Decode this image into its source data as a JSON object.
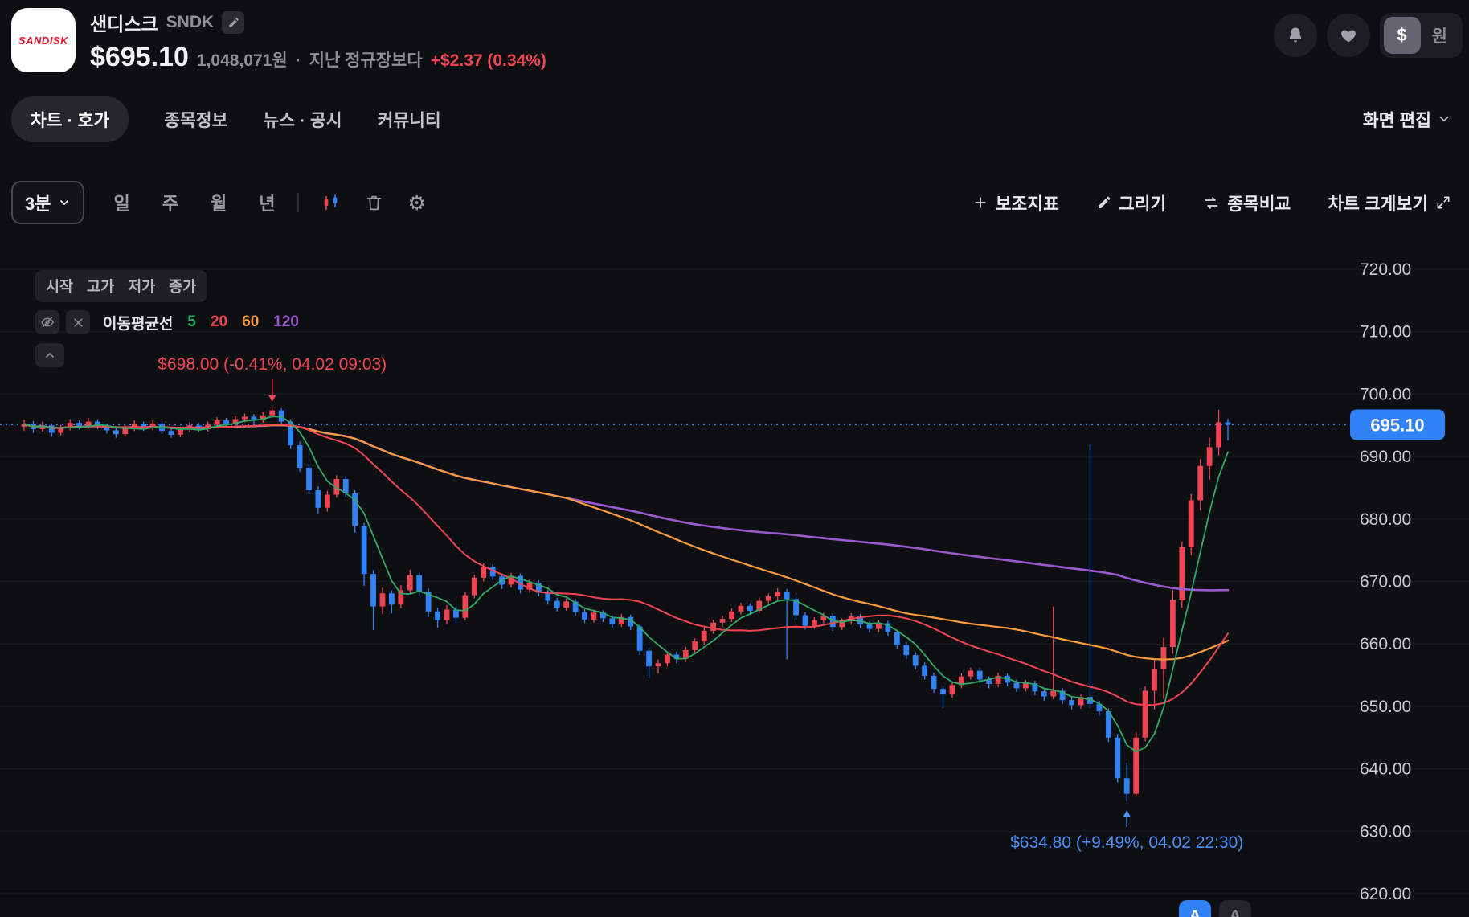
{
  "header": {
    "logo_text": "SANDISK",
    "name": "샌디스크",
    "ticker": "SNDK",
    "price": "$695.10",
    "krw_value": "1,048,071원",
    "dot": "·",
    "compare_label": "지난 정규장보다",
    "change": "+$2.37 (0.34%)",
    "currency_usd": "$",
    "currency_krw": "원"
  },
  "nav": {
    "tabs": [
      {
        "label": "차트 · 호가",
        "active": true
      },
      {
        "label": "종목정보",
        "active": false
      },
      {
        "label": "뉴스 · 공시",
        "active": false
      },
      {
        "label": "커뮤니티",
        "active": false
      }
    ],
    "screen_edit": "화면 편집"
  },
  "toolbar": {
    "interval": "3분",
    "units": [
      "일",
      "주",
      "월",
      "년"
    ],
    "indicator": "보조지표",
    "draw": "그리기",
    "compare": "종목비교",
    "enlarge": "차트 크게보기"
  },
  "legend": {
    "ohlc": [
      "시작",
      "고가",
      "저가",
      "종가"
    ],
    "ma_label": "이동평균선",
    "ma": [
      {
        "window": "5",
        "color": "#2fa968"
      },
      {
        "window": "20",
        "color": "#f04452"
      },
      {
        "window": "60",
        "color": "#f99b3d"
      },
      {
        "window": "120",
        "color": "#9b59d0"
      }
    ]
  },
  "font_controls": [
    "A",
    "A"
  ],
  "chart_data": {
    "type": "candlestick",
    "interval": "3분",
    "price_axis": {
      "min": 620,
      "max": 720,
      "ticks": [
        "720.00",
        "710.00",
        "700.00",
        "690.00",
        "680.00",
        "670.00",
        "660.00",
        "650.00",
        "640.00",
        "630.00",
        "620.00"
      ]
    },
    "current_price": {
      "label": "695.10",
      "value": 695.1,
      "color": "#3182f6"
    },
    "colors": {
      "up": "#f04452",
      "down": "#3182f6",
      "grid": "#17181d"
    },
    "ma_windows": [
      {
        "n": 120,
        "color": "#9b59d0",
        "width": 2.6
      },
      {
        "n": 60,
        "color": "#f99b3d",
        "width": 2.2
      },
      {
        "n": 20,
        "color": "#f04452",
        "width": 2.0
      },
      {
        "n": 5,
        "color": "#2fa968",
        "width": 1.8
      }
    ],
    "annotations": [
      {
        "text": "$698.00 (-0.41%, 04.02 09:03)",
        "candle": 27,
        "price": 698.0,
        "side": "above",
        "color": "#f04452"
      },
      {
        "text": "$634.80 (+9.49%, 04.02 22:30)",
        "candle": 120,
        "price": 634.8,
        "side": "below",
        "color": "#4a90f7"
      }
    ],
    "candles": [
      [
        694.8,
        695.9,
        694.1,
        695.2
      ],
      [
        695.2,
        695.7,
        693.8,
        694.4
      ],
      [
        694.4,
        695.6,
        694.0,
        695.0
      ],
      [
        695.0,
        695.3,
        693.2,
        693.8
      ],
      [
        693.8,
        695.1,
        693.4,
        694.6
      ],
      [
        694.6,
        696.0,
        694.2,
        695.4
      ],
      [
        695.4,
        695.8,
        694.3,
        694.8
      ],
      [
        694.8,
        696.2,
        694.5,
        695.6
      ],
      [
        695.6,
        696.0,
        694.4,
        694.9
      ],
      [
        694.9,
        695.3,
        693.7,
        694.2
      ],
      [
        694.2,
        694.7,
        693.0,
        693.6
      ],
      [
        693.6,
        695.0,
        693.2,
        694.5
      ],
      [
        694.5,
        695.8,
        694.1,
        695.2
      ],
      [
        695.2,
        695.6,
        694.1,
        694.6
      ],
      [
        694.6,
        695.9,
        694.2,
        695.3
      ],
      [
        695.3,
        695.7,
        693.6,
        694.1
      ],
      [
        694.1,
        694.6,
        693.0,
        693.5
      ],
      [
        693.5,
        694.8,
        693.1,
        694.3
      ],
      [
        694.3,
        695.5,
        693.9,
        695.0
      ],
      [
        695.0,
        695.4,
        693.9,
        694.4
      ],
      [
        694.4,
        695.6,
        694.0,
        695.1
      ],
      [
        695.1,
        696.3,
        694.7,
        695.8
      ],
      [
        695.8,
        696.2,
        694.7,
        695.2
      ],
      [
        695.2,
        696.5,
        694.9,
        696.0
      ],
      [
        696.0,
        696.9,
        695.5,
        696.4
      ],
      [
        696.4,
        696.8,
        695.3,
        695.8
      ],
      [
        695.8,
        697.1,
        695.4,
        696.6
      ],
      [
        696.6,
        698.0,
        696.2,
        697.4
      ],
      [
        697.4,
        697.7,
        695.0,
        695.6
      ],
      [
        695.6,
        696.0,
        691.2,
        691.8
      ],
      [
        691.8,
        692.4,
        687.6,
        688.2
      ],
      [
        688.2,
        688.8,
        683.9,
        684.6
      ],
      [
        684.6,
        685.2,
        680.8,
        681.8
      ],
      [
        681.8,
        684.5,
        681.2,
        683.9
      ],
      [
        683.9,
        687.0,
        683.4,
        686.4
      ],
      [
        686.4,
        686.9,
        683.5,
        684.1
      ],
      [
        684.1,
        684.6,
        677.8,
        678.9
      ],
      [
        678.9,
        679.4,
        669.3,
        671.2
      ],
      [
        671.2,
        671.8,
        662.2,
        666.0
      ],
      [
        666.0,
        669.0,
        664.8,
        668.1
      ],
      [
        668.1,
        668.6,
        664.9,
        666.3
      ],
      [
        666.3,
        669.4,
        665.7,
        668.6
      ],
      [
        668.6,
        671.9,
        668.0,
        671.0
      ],
      [
        671.0,
        671.5,
        667.6,
        668.4
      ],
      [
        668.4,
        668.9,
        664.3,
        665.2
      ],
      [
        665.2,
        665.8,
        662.6,
        663.8
      ],
      [
        663.8,
        666.2,
        663.2,
        665.5
      ],
      [
        665.5,
        666.0,
        663.3,
        664.2
      ],
      [
        664.2,
        668.3,
        663.8,
        667.8
      ],
      [
        667.8,
        671.1,
        667.3,
        670.6
      ],
      [
        670.6,
        672.9,
        670.0,
        672.3
      ],
      [
        672.3,
        672.8,
        670.2,
        670.8
      ],
      [
        670.8,
        671.3,
        668.8,
        669.5
      ],
      [
        669.5,
        671.4,
        669.0,
        670.9
      ],
      [
        670.9,
        671.3,
        668.1,
        668.7
      ],
      [
        668.7,
        670.3,
        668.2,
        669.8
      ],
      [
        669.8,
        670.2,
        667.6,
        668.2
      ],
      [
        668.2,
        668.7,
        666.3,
        666.9
      ],
      [
        666.9,
        667.4,
        665.2,
        665.8
      ],
      [
        665.8,
        667.3,
        665.3,
        666.8
      ],
      [
        666.8,
        667.2,
        664.5,
        665.1
      ],
      [
        665.1,
        665.6,
        663.3,
        663.9
      ],
      [
        663.9,
        665.5,
        663.4,
        665.0
      ],
      [
        665.0,
        665.4,
        663.5,
        664.1
      ],
      [
        664.1,
        664.6,
        662.6,
        663.2
      ],
      [
        663.2,
        664.8,
        662.7,
        664.3
      ],
      [
        664.3,
        664.7,
        662.2,
        662.8
      ],
      [
        662.8,
        663.2,
        658.2,
        658.9
      ],
      [
        658.9,
        659.4,
        654.5,
        656.4
      ],
      [
        656.4,
        657.5,
        655.3,
        656.9
      ],
      [
        656.9,
        658.8,
        656.4,
        658.3
      ],
      [
        658.3,
        658.8,
        656.9,
        657.6
      ],
      [
        657.6,
        659.5,
        657.1,
        659.0
      ],
      [
        659.0,
        660.9,
        658.5,
        660.4
      ],
      [
        660.4,
        662.6,
        659.9,
        662.1
      ],
      [
        662.1,
        663.9,
        661.6,
        663.4
      ],
      [
        663.4,
        664.5,
        662.7,
        664.0
      ],
      [
        664.0,
        665.7,
        663.5,
        665.2
      ],
      [
        665.2,
        666.6,
        664.7,
        666.1
      ],
      [
        666.1,
        666.5,
        664.7,
        665.3
      ],
      [
        665.3,
        667.4,
        664.9,
        666.9
      ],
      [
        666.9,
        668.1,
        666.4,
        667.6
      ],
      [
        667.6,
        668.9,
        667.0,
        668.4
      ],
      [
        668.4,
        668.8,
        657.5,
        667.2
      ],
      [
        667.2,
        667.6,
        663.9,
        664.6
      ],
      [
        664.6,
        665.1,
        662.3,
        662.9
      ],
      [
        662.9,
        664.3,
        662.4,
        663.8
      ],
      [
        663.8,
        665.0,
        663.3,
        664.5
      ],
      [
        664.5,
        664.9,
        662.1,
        662.7
      ],
      [
        662.7,
        664.1,
        662.2,
        663.6
      ],
      [
        663.6,
        664.9,
        663.1,
        664.4
      ],
      [
        664.4,
        664.8,
        662.5,
        663.1
      ],
      [
        663.1,
        663.6,
        661.8,
        662.4
      ],
      [
        662.4,
        663.8,
        661.9,
        663.3
      ],
      [
        663.3,
        663.7,
        661.3,
        661.9
      ],
      [
        661.9,
        662.3,
        659.2,
        659.8
      ],
      [
        659.8,
        660.3,
        657.6,
        658.2
      ],
      [
        658.2,
        658.7,
        655.9,
        656.5
      ],
      [
        656.5,
        657.0,
        654.3,
        654.9
      ],
      [
        654.9,
        655.4,
        652.2,
        652.8
      ],
      [
        652.8,
        653.3,
        649.8,
        651.9
      ],
      [
        651.9,
        653.9,
        651.4,
        653.4
      ],
      [
        653.4,
        655.3,
        652.9,
        654.8
      ],
      [
        654.8,
        656.2,
        654.3,
        655.7
      ],
      [
        655.7,
        656.1,
        653.7,
        654.3
      ],
      [
        654.3,
        654.8,
        652.9,
        653.6
      ],
      [
        653.6,
        655.4,
        653.1,
        654.9
      ],
      [
        654.9,
        655.3,
        653.2,
        653.8
      ],
      [
        653.8,
        654.3,
        652.3,
        652.9
      ],
      [
        652.9,
        654.2,
        652.4,
        653.7
      ],
      [
        653.7,
        654.1,
        651.8,
        652.4
      ],
      [
        652.4,
        652.9,
        650.9,
        651.6
      ],
      [
        651.6,
        666.0,
        651.1,
        652.5
      ],
      [
        652.5,
        652.9,
        650.4,
        651.0
      ],
      [
        651.0,
        651.5,
        649.5,
        650.2
      ],
      [
        650.2,
        652.0,
        649.6,
        651.5
      ],
      [
        651.5,
        692.0,
        649.8,
        650.4
      ],
      [
        650.4,
        650.9,
        648.5,
        649.2
      ],
      [
        649.2,
        649.7,
        644.3,
        645.0
      ],
      [
        645.0,
        645.6,
        637.8,
        638.5
      ],
      [
        638.5,
        641.0,
        634.8,
        636.0
      ],
      [
        636.0,
        645.8,
        635.5,
        645.0
      ],
      [
        645.0,
        653.2,
        644.4,
        652.5
      ],
      [
        652.5,
        657.6,
        649.5,
        656.0
      ],
      [
        656.0,
        661.0,
        651.2,
        659.5
      ],
      [
        659.5,
        668.6,
        658.4,
        667.0
      ],
      [
        667.0,
        676.4,
        665.8,
        675.5
      ],
      [
        675.5,
        684.0,
        674.2,
        683.0
      ],
      [
        683.0,
        689.6,
        681.4,
        688.5
      ],
      [
        688.5,
        693.0,
        686.3,
        691.5
      ],
      [
        691.5,
        697.5,
        690.2,
        695.5
      ],
      [
        695.5,
        696.1,
        692.6,
        695.1
      ]
    ]
  }
}
